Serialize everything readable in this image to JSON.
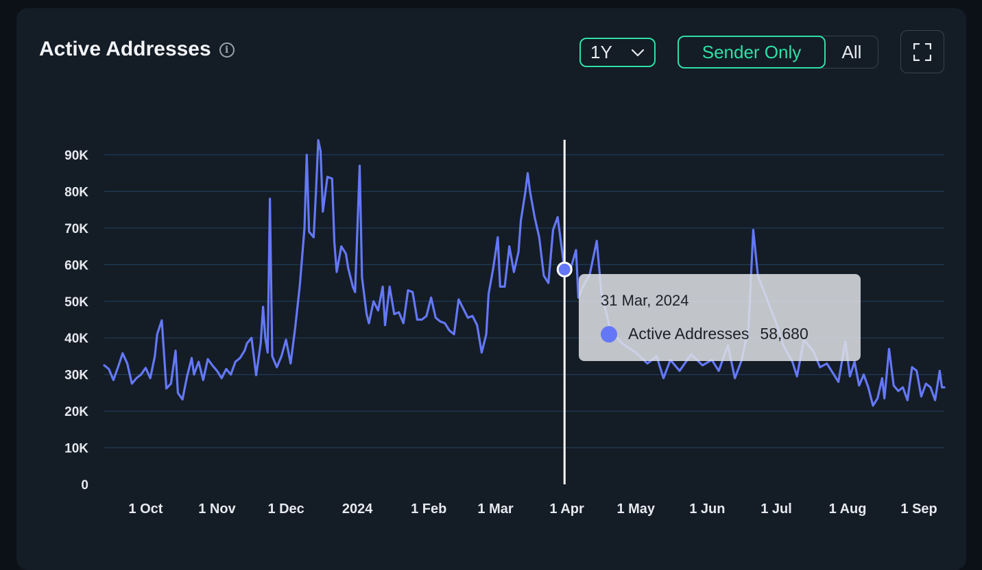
{
  "header": {
    "title": "Active Addresses",
    "info_icon": "info-icon",
    "range": {
      "selected": "1Y",
      "icon": "chevron-down-icon"
    },
    "toggle": {
      "active": "Sender Only",
      "other": "All"
    },
    "expand_icon": "fullscreen-icon"
  },
  "colors": {
    "background": "#0c1118",
    "card": "#141c26",
    "accent": "#2fe0a6",
    "series": "#6478f7",
    "grid": "#1f3a55",
    "tooltip_bg": "#dee0e4"
  },
  "tooltip": {
    "date": "31 Mar, 2024",
    "series_name": "Active Addresses",
    "value": "58,680"
  },
  "chart_data": {
    "type": "line",
    "x_start": "2023-09-13",
    "x_end": "2024-09-12",
    "xticks": [
      {
        "label": "1 Oct",
        "date": "2023-10-01"
      },
      {
        "label": "1 Nov",
        "date": "2023-11-01"
      },
      {
        "label": "1 Dec",
        "date": "2023-12-01"
      },
      {
        "label": "2024",
        "date": "2024-01-01"
      },
      {
        "label": "1 Feb",
        "date": "2024-02-01"
      },
      {
        "label": "1 Mar",
        "date": "2024-03-01"
      },
      {
        "label": "1 Apr",
        "date": "2024-04-01"
      },
      {
        "label": "1 May",
        "date": "2024-05-01"
      },
      {
        "label": "1 Jun",
        "date": "2024-06-01"
      },
      {
        "label": "1 Jul",
        "date": "2024-07-01"
      },
      {
        "label": "1 Aug",
        "date": "2024-08-01"
      },
      {
        "label": "1 Sep",
        "date": "2024-09-01"
      }
    ],
    "yticks": [
      {
        "label": "0",
        "value": 0
      },
      {
        "label": "10K",
        "value": 10000
      },
      {
        "label": "20K",
        "value": 20000
      },
      {
        "label": "30K",
        "value": 30000
      },
      {
        "label": "40K",
        "value": 40000
      },
      {
        "label": "50K",
        "value": 50000
      },
      {
        "label": "60K",
        "value": 60000
      },
      {
        "label": "70K",
        "value": 70000
      },
      {
        "label": "80K",
        "value": 80000
      },
      {
        "label": "90K",
        "value": 90000
      }
    ],
    "ylim": [
      0,
      90000
    ],
    "grid": true,
    "crosshair_date": "2024-03-31",
    "series": [
      {
        "name": "Active Addresses",
        "points": [
          [
            "2023-09-13",
            32500
          ],
          [
            "2023-09-15",
            31500
          ],
          [
            "2023-09-17",
            28500
          ],
          [
            "2023-09-19",
            32000
          ],
          [
            "2023-09-21",
            35800
          ],
          [
            "2023-09-23",
            33000
          ],
          [
            "2023-09-25",
            27500
          ],
          [
            "2023-09-27",
            29000
          ],
          [
            "2023-09-29",
            30000
          ],
          [
            "2023-10-01",
            31800
          ],
          [
            "2023-10-03",
            29000
          ],
          [
            "2023-10-05",
            35000
          ],
          [
            "2023-10-06",
            41000
          ],
          [
            "2023-10-08",
            44800
          ],
          [
            "2023-10-10",
            26200
          ],
          [
            "2023-10-12",
            27500
          ],
          [
            "2023-10-14",
            36500
          ],
          [
            "2023-10-15",
            25000
          ],
          [
            "2023-10-17",
            23200
          ],
          [
            "2023-10-19",
            29500
          ],
          [
            "2023-10-21",
            34500
          ],
          [
            "2023-10-22",
            30000
          ],
          [
            "2023-10-24",
            33500
          ],
          [
            "2023-10-26",
            28500
          ],
          [
            "2023-10-28",
            34200
          ],
          [
            "2023-10-30",
            32500
          ],
          [
            "2023-11-01",
            31000
          ],
          [
            "2023-11-03",
            29000
          ],
          [
            "2023-11-05",
            31500
          ],
          [
            "2023-11-07",
            30000
          ],
          [
            "2023-11-09",
            33500
          ],
          [
            "2023-11-11",
            34500
          ],
          [
            "2023-11-13",
            36500
          ],
          [
            "2023-11-14",
            38500
          ],
          [
            "2023-11-16",
            40000
          ],
          [
            "2023-11-18",
            29800
          ],
          [
            "2023-11-20",
            38500
          ],
          [
            "2023-11-21",
            48500
          ],
          [
            "2023-11-22",
            40000
          ],
          [
            "2023-11-23",
            36000
          ],
          [
            "2023-11-24",
            78000
          ],
          [
            "2023-11-25",
            35000
          ],
          [
            "2023-11-27",
            32000
          ],
          [
            "2023-11-29",
            35000
          ],
          [
            "2023-12-01",
            39500
          ],
          [
            "2023-12-03",
            33000
          ],
          [
            "2023-12-05",
            43000
          ],
          [
            "2023-12-07",
            54500
          ],
          [
            "2023-12-09",
            70000
          ],
          [
            "2023-12-10",
            90000
          ],
          [
            "2023-12-11",
            69000
          ],
          [
            "2023-12-13",
            67500
          ],
          [
            "2023-12-14",
            80000
          ],
          [
            "2023-12-15",
            94000
          ],
          [
            "2023-12-16",
            91000
          ],
          [
            "2023-12-17",
            74500
          ],
          [
            "2023-12-19",
            84000
          ],
          [
            "2023-12-21",
            83500
          ],
          [
            "2023-12-22",
            66000
          ],
          [
            "2023-12-23",
            58000
          ],
          [
            "2023-12-25",
            65000
          ],
          [
            "2023-12-27",
            63000
          ],
          [
            "2023-12-28",
            59000
          ],
          [
            "2023-12-30",
            54000
          ],
          [
            "2023-12-31",
            52500
          ],
          [
            "2024-01-02",
            87000
          ],
          [
            "2024-01-03",
            56500
          ],
          [
            "2024-01-05",
            46500
          ],
          [
            "2024-01-06",
            44000
          ],
          [
            "2024-01-08",
            50000
          ],
          [
            "2024-01-10",
            47500
          ],
          [
            "2024-01-12",
            54000
          ],
          [
            "2024-01-13",
            43500
          ],
          [
            "2024-01-15",
            54000
          ],
          [
            "2024-01-17",
            46500
          ],
          [
            "2024-01-19",
            47000
          ],
          [
            "2024-01-21",
            44000
          ],
          [
            "2024-01-23",
            53000
          ],
          [
            "2024-01-25",
            52500
          ],
          [
            "2024-01-27",
            45000
          ],
          [
            "2024-01-29",
            45000
          ],
          [
            "2024-01-31",
            46000
          ],
          [
            "2024-02-02",
            51000
          ],
          [
            "2024-02-04",
            45500
          ],
          [
            "2024-02-06",
            44500
          ],
          [
            "2024-02-08",
            44000
          ],
          [
            "2024-02-10",
            42000
          ],
          [
            "2024-02-12",
            41000
          ],
          [
            "2024-02-14",
            50500
          ],
          [
            "2024-02-16",
            48000
          ],
          [
            "2024-02-18",
            45500
          ],
          [
            "2024-02-20",
            46000
          ],
          [
            "2024-02-22",
            43500
          ],
          [
            "2024-02-24",
            36000
          ],
          [
            "2024-02-26",
            41000
          ],
          [
            "2024-02-27",
            52000
          ],
          [
            "2024-02-29",
            59000
          ],
          [
            "2024-03-02",
            67500
          ],
          [
            "2024-03-03",
            54000
          ],
          [
            "2024-03-05",
            54000
          ],
          [
            "2024-03-07",
            65000
          ],
          [
            "2024-03-09",
            58000
          ],
          [
            "2024-03-11",
            63500
          ],
          [
            "2024-03-12",
            72000
          ],
          [
            "2024-03-14",
            80000
          ],
          [
            "2024-03-15",
            85000
          ],
          [
            "2024-03-16",
            80000
          ],
          [
            "2024-03-18",
            73000
          ],
          [
            "2024-03-20",
            67500
          ],
          [
            "2024-03-22",
            57000
          ],
          [
            "2024-03-24",
            55000
          ],
          [
            "2024-03-26",
            69500
          ],
          [
            "2024-03-28",
            73000
          ],
          [
            "2024-03-31",
            58680
          ],
          [
            "2024-04-02",
            57500
          ],
          [
            "2024-04-05",
            64000
          ],
          [
            "2024-04-06",
            51000
          ],
          [
            "2024-04-08",
            54000
          ],
          [
            "2024-04-11",
            57500
          ],
          [
            "2024-04-14",
            66500
          ],
          [
            "2024-04-16",
            52500
          ],
          [
            "2024-04-20",
            42000
          ],
          [
            "2024-04-25",
            38500
          ],
          [
            "2024-05-01",
            36000
          ],
          [
            "2024-05-06",
            33000
          ],
          [
            "2024-05-10",
            35000
          ],
          [
            "2024-05-13",
            29000
          ],
          [
            "2024-05-16",
            34000
          ],
          [
            "2024-05-20",
            31000
          ],
          [
            "2024-05-25",
            35500
          ],
          [
            "2024-05-30",
            32500
          ],
          [
            "2024-06-03",
            34000
          ],
          [
            "2024-06-06",
            31000
          ],
          [
            "2024-06-10",
            38000
          ],
          [
            "2024-06-13",
            29000
          ],
          [
            "2024-06-16",
            34000
          ],
          [
            "2024-06-19",
            43000
          ],
          [
            "2024-06-21",
            69500
          ],
          [
            "2024-06-23",
            57000
          ],
          [
            "2024-06-27",
            50500
          ],
          [
            "2024-07-01",
            44000
          ],
          [
            "2024-07-04",
            38000
          ],
          [
            "2024-07-08",
            33500
          ],
          [
            "2024-07-10",
            29500
          ],
          [
            "2024-07-13",
            39500
          ],
          [
            "2024-07-17",
            36500
          ],
          [
            "2024-07-20",
            32000
          ],
          [
            "2024-07-23",
            33000
          ],
          [
            "2024-07-26",
            30000
          ],
          [
            "2024-07-28",
            28000
          ],
          [
            "2024-07-31",
            39000
          ],
          [
            "2024-08-02",
            29500
          ],
          [
            "2024-08-04",
            33500
          ],
          [
            "2024-08-06",
            27000
          ],
          [
            "2024-08-08",
            30000
          ],
          [
            "2024-08-10",
            26500
          ],
          [
            "2024-08-12",
            21500
          ],
          [
            "2024-08-14",
            23500
          ],
          [
            "2024-08-16",
            29000
          ],
          [
            "2024-08-17",
            23500
          ],
          [
            "2024-08-19",
            37000
          ],
          [
            "2024-08-21",
            27000
          ],
          [
            "2024-08-23",
            25500
          ],
          [
            "2024-08-25",
            26500
          ],
          [
            "2024-08-27",
            23000
          ],
          [
            "2024-08-29",
            32000
          ],
          [
            "2024-08-31",
            31000
          ],
          [
            "2024-09-02",
            24000
          ],
          [
            "2024-09-04",
            27500
          ],
          [
            "2024-09-06",
            26500
          ],
          [
            "2024-09-08",
            23000
          ],
          [
            "2024-09-10",
            31000
          ],
          [
            "2024-09-11",
            26500
          ],
          [
            "2024-09-12",
            26500
          ]
        ]
      }
    ]
  }
}
